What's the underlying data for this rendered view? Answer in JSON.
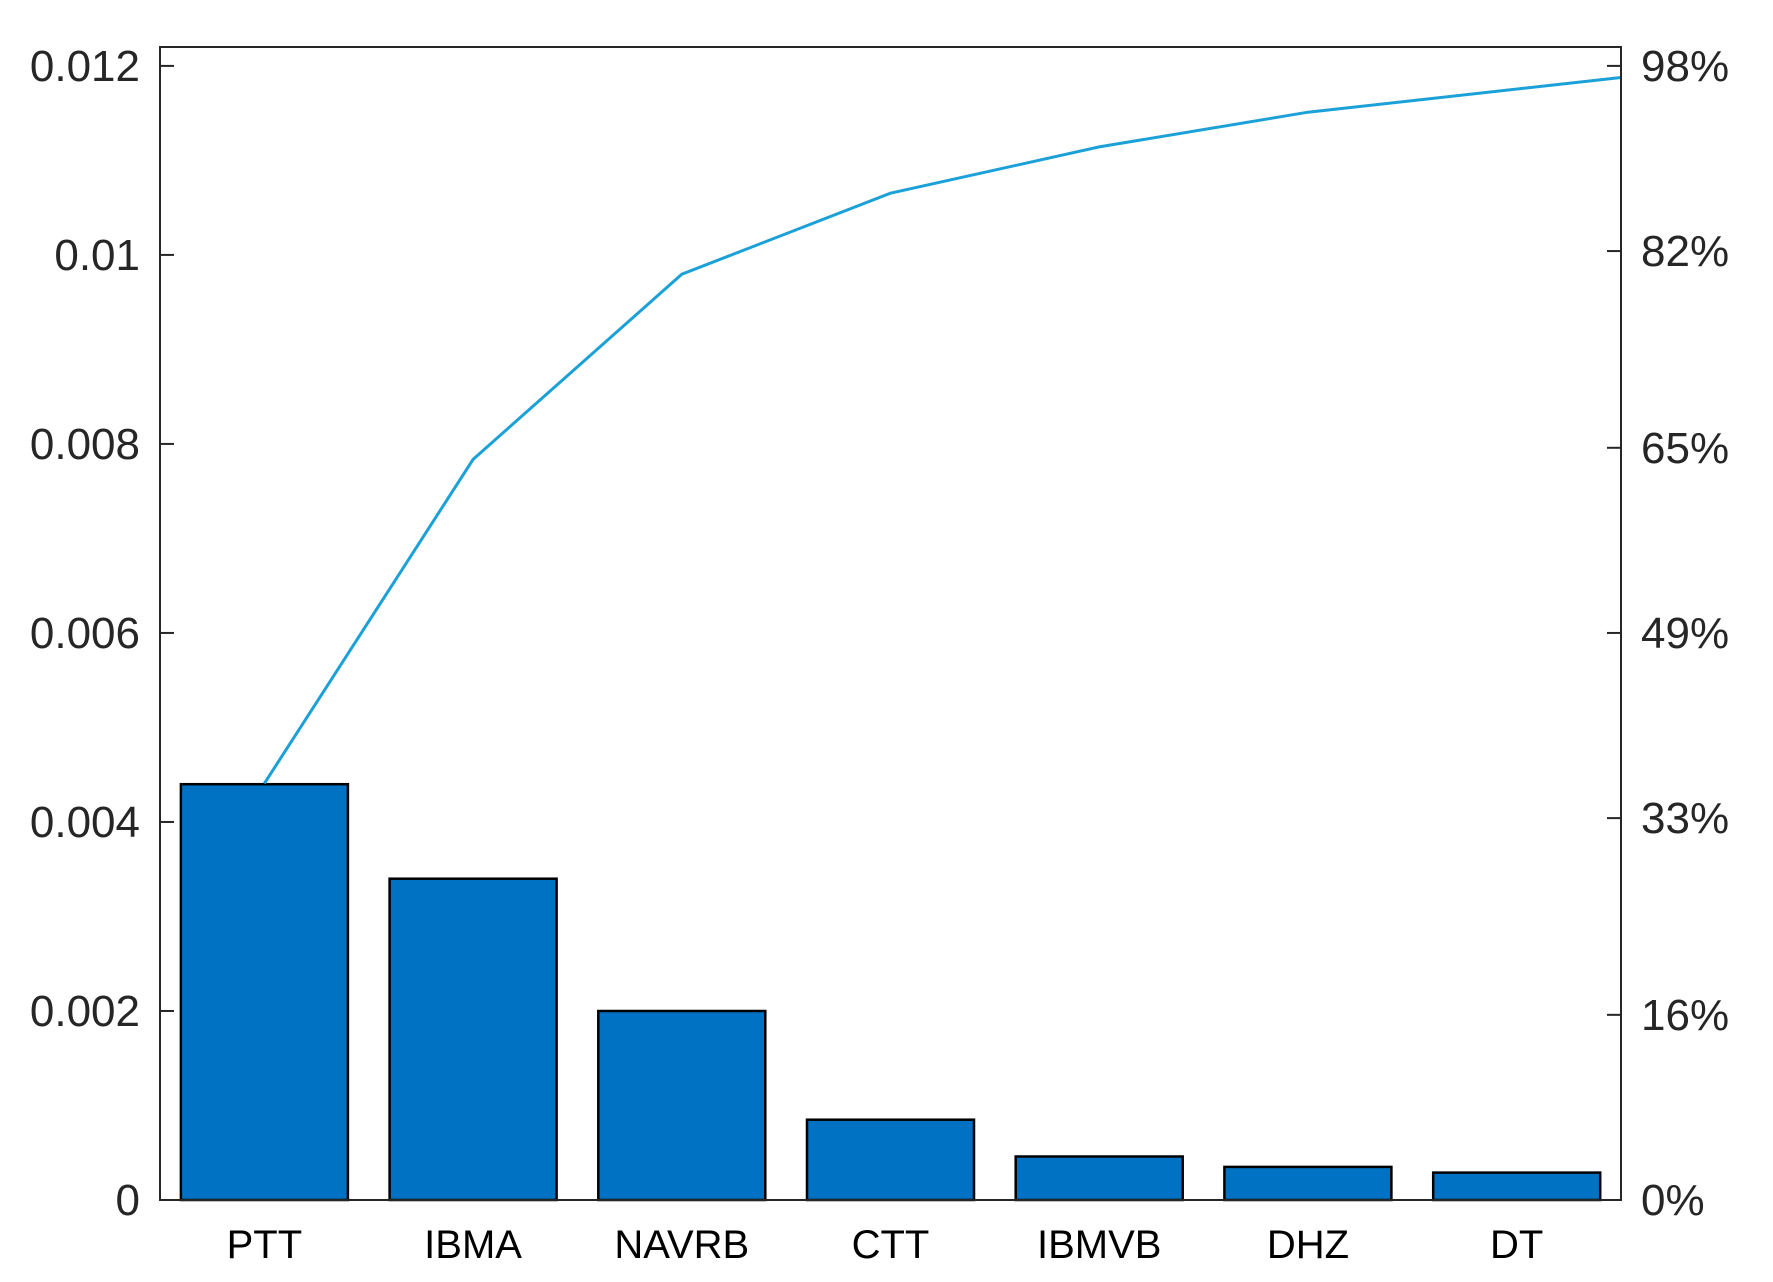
{
  "chart_data": {
    "type": "bar",
    "subtype": "pareto",
    "categories": [
      "PTT",
      "IBMA",
      "NAVRB",
      "CTT",
      "IBMVB",
      "DHZ",
      "DT"
    ],
    "values": [
      0.0044,
      0.0034,
      0.002,
      0.00085,
      0.00046,
      0.00035,
      0.00029
    ],
    "cumulative_percent": [
      36,
      64,
      80,
      87,
      91,
      94,
      97
    ],
    "title": "",
    "xlabel": "",
    "ylabel": "",
    "ylim": [
      0,
      0.0122
    ],
    "yticks": [
      0,
      0.002,
      0.004,
      0.006,
      0.008,
      0.01,
      0.012
    ],
    "ytick_labels": [
      "0",
      "0.002",
      "0.004",
      "0.006",
      "0.008",
      "0.01",
      "0.012"
    ],
    "y2ticks_percent": [
      0,
      16,
      33,
      49,
      65,
      82,
      98
    ],
    "y2tick_labels": [
      "0%",
      "16%",
      "33%",
      "49%",
      "65%",
      "82%",
      "98%"
    ],
    "grid": false,
    "legend": "none",
    "colors": {
      "bar_fill": "#0072C4",
      "bar_edge": "#000000",
      "line": "#1BA1D8",
      "axis": "#262626"
    }
  }
}
